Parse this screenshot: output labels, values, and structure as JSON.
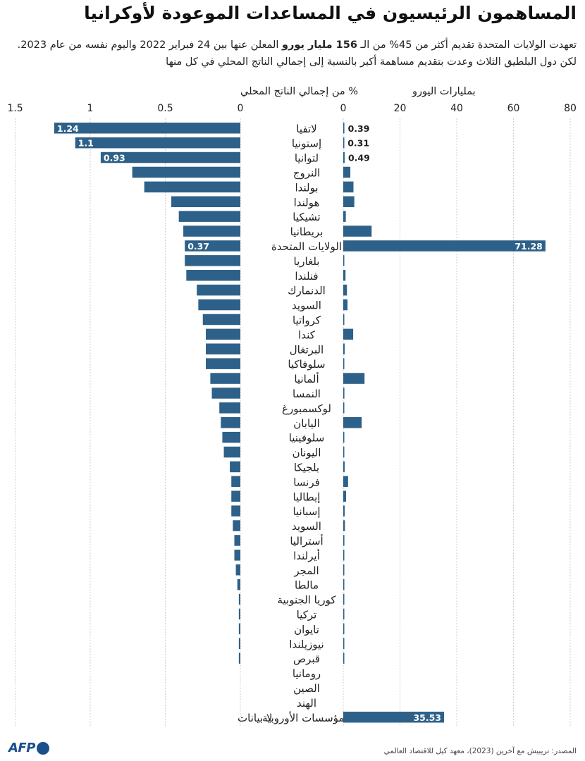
{
  "title": "المساهمون الرئيسيون في المساعدات الموعودة لأوكرانيا",
  "subtitle": {
    "part1": "تعهدت الولايات المتحدة تقديم أكثر من 45% من الـ ",
    "bold": "156 مليار يورو",
    "part2": " المعلن عنها بين 24 فبراير 2022 واليوم نفسه من عام 2023. لكن دول البلطيق الثلاث وعدت بتقديم مساهمة أكبر بالنسبة إلى إجمالي الناتج المحلي في كل منها"
  },
  "source": "المصدر: تريبيش مع آخرين (2023)، معهد كيل للاقتصاد العالمي",
  "logo": {
    "text": "AFP",
    "icon": "afp-dot-icon"
  },
  "chart_data": {
    "type": "bar",
    "bar_color": "#2e6189",
    "grid_color": "#cfcfcf",
    "left_panel": {
      "title": "% من إجمالي الناتج المحلي",
      "ticks": [
        "1.5",
        "1",
        "0.5",
        "0"
      ],
      "range": [
        0,
        1.5
      ]
    },
    "right_panel": {
      "title": "بمليارات اليورو",
      "ticks": [
        "0",
        "20",
        "40",
        "60",
        "80"
      ],
      "range": [
        0,
        80
      ]
    },
    "no_data_label": "لا بيانات",
    "categories": [
      "لاتفيا",
      "إستونيا",
      "لتوانيا",
      "النروج",
      "بولندا",
      "هولندا",
      "تشيكيا",
      "بريطانيا",
      "الولايات المتحدة",
      "بلغاريا",
      "فنلندا",
      "الدنمارك",
      "السويد",
      "كرواتيا",
      "كندا",
      "البرتغال",
      "سلوفاكيا",
      "ألمانيا",
      "النمسا",
      "لوكسمبورغ",
      "اليابان",
      "سلوفينيا",
      "اليونان",
      "بلجيكا",
      "فرنسا",
      "إيطاليا",
      "إسبانيا",
      "السويد",
      "أستراليا",
      "أيرلندا",
      "المجر",
      "مالطا",
      "كوريا الجنوبية",
      "تركيا",
      "تايوان",
      "نيوزيلندا",
      "قبرص",
      "رومانيا",
      "الصين",
      "الهند",
      "المؤسسات الأوروبية"
    ],
    "gdp_pct": [
      1.24,
      1.1,
      0.93,
      0.72,
      0.64,
      0.46,
      0.41,
      0.38,
      0.37,
      0.37,
      0.36,
      0.29,
      0.28,
      0.25,
      0.23,
      0.23,
      0.23,
      0.2,
      0.19,
      0.14,
      0.13,
      0.12,
      0.11,
      0.07,
      0.06,
      0.06,
      0.06,
      0.05,
      0.04,
      0.04,
      0.03,
      0.02,
      0.01,
      0.01,
      0.01,
      0.01,
      0.01,
      0,
      0,
      0,
      null
    ],
    "gdp_labels": [
      "1.24",
      "1.1",
      "0.93",
      "",
      "",
      "",
      "",
      "",
      "0.37",
      "",
      "",
      "",
      "",
      "",
      "",
      "",
      "",
      "",
      "",
      "",
      "",
      "",
      "",
      "",
      "",
      "",
      "",
      "",
      "",
      "",
      "",
      "",
      "",
      "",
      "",
      "",
      "",
      "",
      "",
      "",
      ""
    ],
    "eur_bn": [
      0.39,
      0.31,
      0.49,
      2.5,
      3.6,
      3.9,
      0.9,
      10,
      71.28,
      0.1,
      0.8,
      1.3,
      1.5,
      0.1,
      3.5,
      0.5,
      0.2,
      7.5,
      0.4,
      0.05,
      6.5,
      0.1,
      0.1,
      0.5,
      1.7,
      1.0,
      0.5,
      0.6,
      0.4,
      0.1,
      0.05,
      0.01,
      0.1,
      0.05,
      0.01,
      0.01,
      0.01,
      0,
      0,
      0,
      35.53
    ],
    "eur_labels": [
      "0.39",
      "0.31",
      "0.49",
      "",
      "",
      "",
      "",
      "",
      "71.28",
      "",
      "",
      "",
      "",
      "",
      "",
      "",
      "",
      "",
      "",
      "",
      "",
      "",
      "",
      "",
      "",
      "",
      "",
      "",
      "",
      "",
      "",
      "",
      "",
      "",
      "",
      "",
      "",
      "",
      "",
      "",
      "35.53"
    ]
  }
}
